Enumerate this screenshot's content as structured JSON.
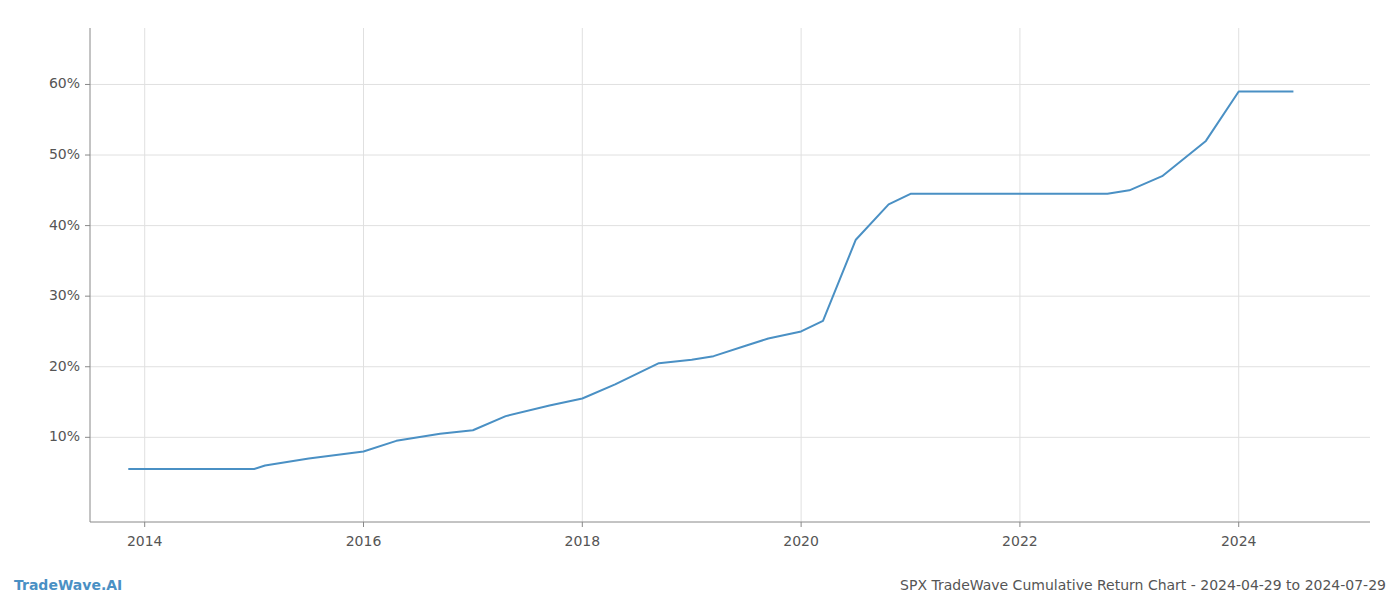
{
  "chart_data": {
    "type": "line",
    "title": "SPX TradeWave Cumulative Return Chart - 2024-04-29 to 2024-07-29",
    "annotations": [
      "TradeWave.AI"
    ],
    "color": "#4a90c4",
    "grid": true,
    "x": [
      2013.85,
      2014.0,
      2014.5,
      2015.0,
      2015.1,
      2015.5,
      2016.0,
      2016.3,
      2016.7,
      2017.0,
      2017.3,
      2017.7,
      2018.0,
      2018.3,
      2018.7,
      2019.0,
      2019.2,
      2019.5,
      2019.7,
      2020.0,
      2020.2,
      2020.5,
      2020.8,
      2021.0,
      2021.3,
      2021.5,
      2021.8,
      2022.0,
      2022.3,
      2022.5,
      2022.8,
      2023.0,
      2023.3,
      2023.7,
      2024.0,
      2024.5
    ],
    "values": [
      0.055,
      0.055,
      0.055,
      0.055,
      0.06,
      0.07,
      0.08,
      0.095,
      0.105,
      0.11,
      0.13,
      0.145,
      0.155,
      0.175,
      0.205,
      0.21,
      0.215,
      0.23,
      0.24,
      0.25,
      0.265,
      0.38,
      0.43,
      0.445,
      0.445,
      0.445,
      0.445,
      0.445,
      0.445,
      0.445,
      0.445,
      0.45,
      0.47,
      0.52,
      0.59,
      0.59
    ],
    "xlim": [
      2013.5,
      2025.2
    ],
    "ylim": [
      -0.02,
      0.68
    ],
    "xticks": [
      2014,
      2016,
      2018,
      2020,
      2022,
      2024
    ],
    "yticks": [
      {
        "value": 0.1,
        "label": "10%"
      },
      {
        "value": 0.2,
        "label": "20%"
      },
      {
        "value": 0.3,
        "label": "30%"
      },
      {
        "value": 0.4,
        "label": "40%"
      },
      {
        "value": 0.5,
        "label": "50%"
      },
      {
        "value": 0.6,
        "label": "60%"
      }
    ]
  }
}
